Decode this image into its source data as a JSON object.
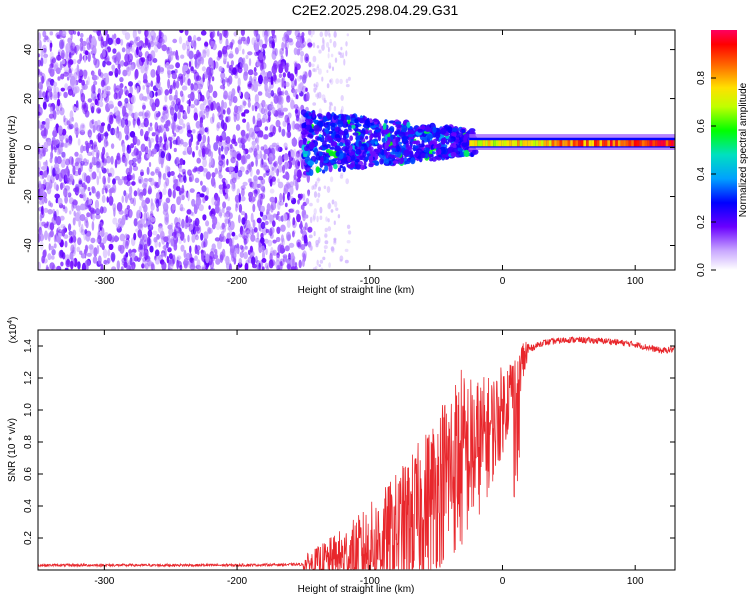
{
  "title": "C2E2.2025.298.04.29.G31",
  "chart_data": [
    {
      "type": "heatmap",
      "name": "spectrogram",
      "xlabel": "Height of straight line (km)",
      "ylabel": "Frequency (Hz)",
      "xlim": [
        -350,
        130
      ],
      "ylim": [
        -50,
        48
      ],
      "xticks": [
        -300,
        -200,
        -100,
        0,
        100
      ],
      "yticks": [
        -40,
        -20,
        0,
        20,
        40
      ],
      "colorbar": {
        "label": "Normalized spectral amplitude",
        "range": [
          0,
          1
        ],
        "ticks": [
          "0.0",
          "0.2",
          "0.4",
          "0.6",
          "0.8"
        ],
        "tick_values": [
          0,
          0.2,
          0.4,
          0.6,
          0.8
        ]
      },
      "regions": [
        {
          "name": "noise",
          "x_range": [
            -350,
            -145
          ],
          "f_range": [
            -50,
            48
          ],
          "amplitude": 0.1
        },
        {
          "name": "sparse-tail",
          "x_range": [
            -145,
            -100
          ],
          "f_range": [
            -50,
            48
          ],
          "amplitude": 0.05
        },
        {
          "name": "transition",
          "x_range": [
            -150,
            -20
          ],
          "f_range": [
            -12,
            15
          ],
          "amplitude": 0.35
        },
        {
          "name": "carrier",
          "x_range": [
            -25,
            130
          ],
          "f_range": [
            0,
            4
          ],
          "amplitude": 0.9
        }
      ]
    },
    {
      "type": "line",
      "name": "snr",
      "xlabel": "Height of straight line (km)",
      "ylabel": "SNR (10 * v/v)",
      "y_scale_label": "(x10",
      "y_scale_exp": "4",
      "y_scale_close": ")",
      "xlim": [
        -350,
        130
      ],
      "ylim": [
        0,
        1.5
      ],
      "xticks": [
        -300,
        -200,
        -100,
        0,
        100
      ],
      "yticks": [
        0.2,
        0.4,
        0.6,
        0.8,
        1.0,
        1.2,
        1.4
      ],
      "ytick_labels": [
        "0.2",
        "0.4",
        "0.6",
        "0.8",
        "1.0",
        "1.2",
        "1.4"
      ],
      "color": "#e8262b",
      "series": [
        {
          "name": "SNR",
          "x": [
            -350,
            -300,
            -250,
            -200,
            -150,
            -130,
            -110,
            -90,
            -70,
            -60,
            -50,
            -40,
            -30,
            -20,
            -10,
            0,
            5,
            10,
            15,
            20,
            30,
            50,
            80,
            100,
            110,
            120,
            130
          ],
          "y": [
            0.03,
            0.03,
            0.03,
            0.03,
            0.035,
            0.06,
            0.1,
            0.18,
            0.3,
            0.38,
            0.5,
            0.62,
            0.7,
            0.75,
            0.85,
            1.0,
            1.1,
            1.2,
            1.3,
            1.38,
            1.42,
            1.44,
            1.43,
            1.41,
            1.39,
            1.37,
            1.38
          ]
        }
      ]
    }
  ]
}
